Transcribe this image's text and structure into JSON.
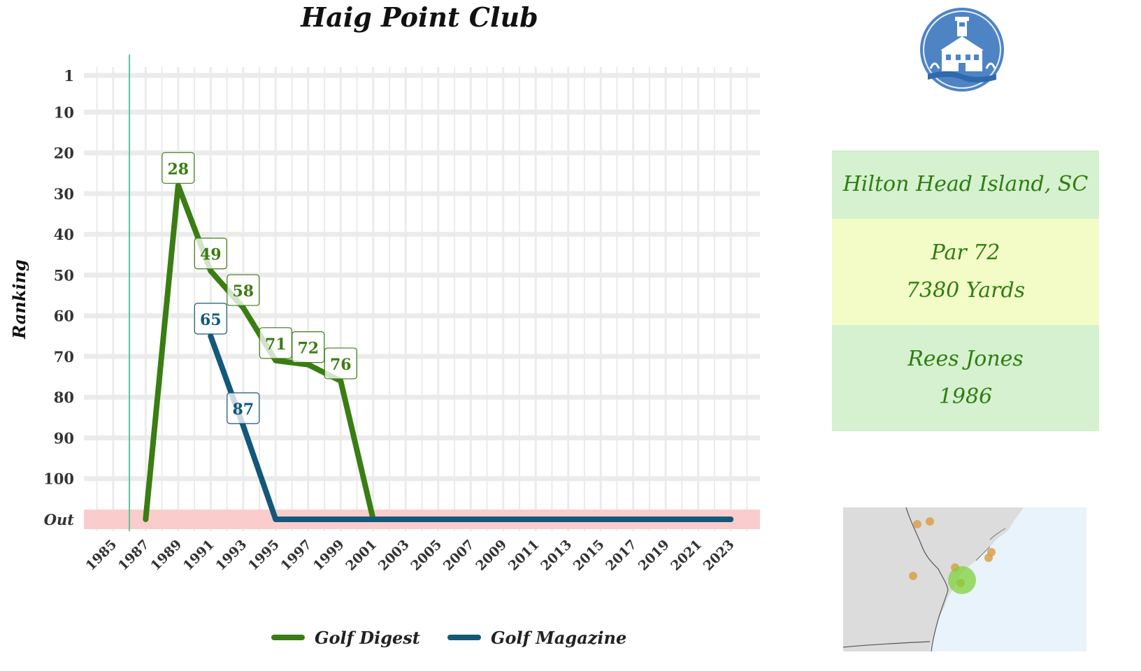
{
  "title": "Haig Point Club",
  "chart_data": {
    "type": "line",
    "title": "Haig Point Club",
    "xlabel": "",
    "ylabel": "Ranking",
    "x_ticks": [
      1985,
      1987,
      1989,
      1991,
      1993,
      1995,
      1997,
      1999,
      2001,
      2003,
      2005,
      2007,
      2009,
      2011,
      2013,
      2015,
      2017,
      2019,
      2021,
      2023
    ],
    "xlim": [
      1983.2,
      2024.8
    ],
    "y_ticks": [
      "1",
      "10",
      "20",
      "30",
      "40",
      "50",
      "60",
      "70",
      "80",
      "90",
      "100",
      "Out"
    ],
    "y_tick_values": [
      1,
      10,
      20,
      30,
      40,
      50,
      60,
      70,
      80,
      90,
      100,
      110
    ],
    "ylim": [
      110,
      1
    ],
    "out_band": {
      "label": "Out",
      "value": 110,
      "color": "#fbcccc"
    },
    "opened_marker": {
      "x": 1986,
      "color": "#5cc49a"
    },
    "grid": true,
    "legend_position": "bottom",
    "series": [
      {
        "name": "Golf Digest",
        "color": "#3a7d12",
        "points": [
          {
            "x": 1987,
            "y": 110,
            "label": null
          },
          {
            "x": 1989,
            "y": 28,
            "label": "28"
          },
          {
            "x": 1991,
            "y": 49,
            "label": "49"
          },
          {
            "x": 1993,
            "y": 58,
            "label": "58"
          },
          {
            "x": 1995,
            "y": 71,
            "label": "71"
          },
          {
            "x": 1997,
            "y": 72,
            "label": "72"
          },
          {
            "x": 1999,
            "y": 76,
            "label": "76"
          },
          {
            "x": 2001,
            "y": 110,
            "label": null
          },
          {
            "x": 2023,
            "y": 110,
            "label": null
          }
        ]
      },
      {
        "name": "Golf Magazine",
        "color": "#12587a",
        "points": [
          {
            "x": 1991,
            "y": 65,
            "label": "65"
          },
          {
            "x": 1993,
            "y": 87,
            "label": "87"
          },
          {
            "x": 1995,
            "y": 110,
            "label": null
          },
          {
            "x": 2023,
            "y": 110,
            "label": null
          }
        ]
      }
    ]
  },
  "info": {
    "location": "Hilton Head Island, SC",
    "par": "Par 72",
    "yards": "7380 Yards",
    "architect": "Rees Jones",
    "year": "1986"
  },
  "colors": {
    "location_bg": "#d5f1cf",
    "course_bg": "#f3fcc6",
    "architect_bg": "#d5f1cf",
    "info_text": "#2e7d12",
    "logo": "#4e84c4",
    "map_land": "#dcdcdc",
    "map_water": "#e9f3fb",
    "map_dot": "#d9a04a",
    "map_highlight": "#7fd13b"
  },
  "icons": {
    "logo": "lighthouse-club-logo",
    "map": "location-map"
  }
}
